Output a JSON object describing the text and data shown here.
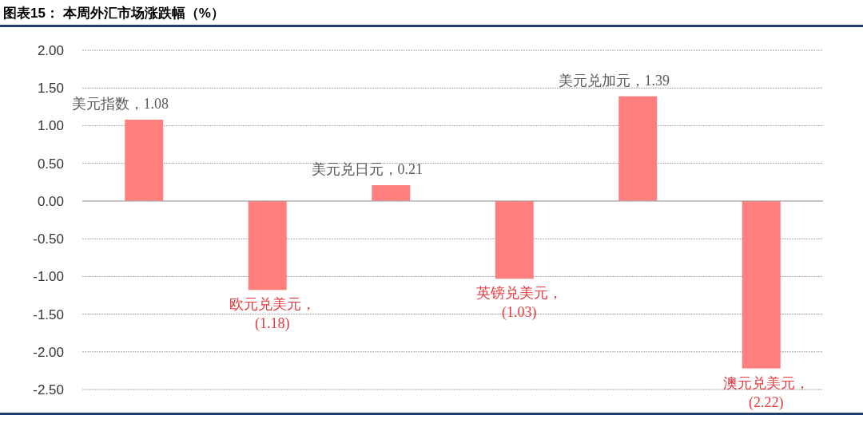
{
  "chart_data": {
    "type": "bar",
    "title": "图表15：  本周外汇市场涨跌幅（%）",
    "categories": [
      null,
      null,
      null,
      null,
      null,
      null
    ],
    "values": [
      1.08,
      -1.18,
      0.21,
      -1.03,
      1.39,
      -2.22
    ],
    "value_labels": [
      "美元指数，1.08",
      "欧元兑美元，(1.18)",
      "美元兑日元，0.21",
      "英镑兑美元，(1.03)",
      "美元兑加元，1.39",
      "澳元兑美元，(2.22)"
    ],
    "color": "#ff7f7f",
    "ylim": [
      -2.5,
      2.0
    ],
    "yticks": [
      {
        "value": 2,
        "label": "2.00"
      },
      {
        "value": 1.5,
        "label": "1.50"
      },
      {
        "value": 1,
        "label": "1.00"
      },
      {
        "value": 0.5,
        "label": "0.50"
      },
      {
        "value": 0,
        "label": "0.00"
      },
      {
        "value": -0.5,
        "label": "-0.50"
      },
      {
        "value": -1,
        "label": "-1.00"
      },
      {
        "value": -1.5,
        "label": "-1.50"
      },
      {
        "value": -2,
        "label": "-2.00"
      },
      {
        "value": -2.5,
        "label": "-2.50"
      }
    ],
    "grid": "y",
    "tick_labels": "y"
  }
}
